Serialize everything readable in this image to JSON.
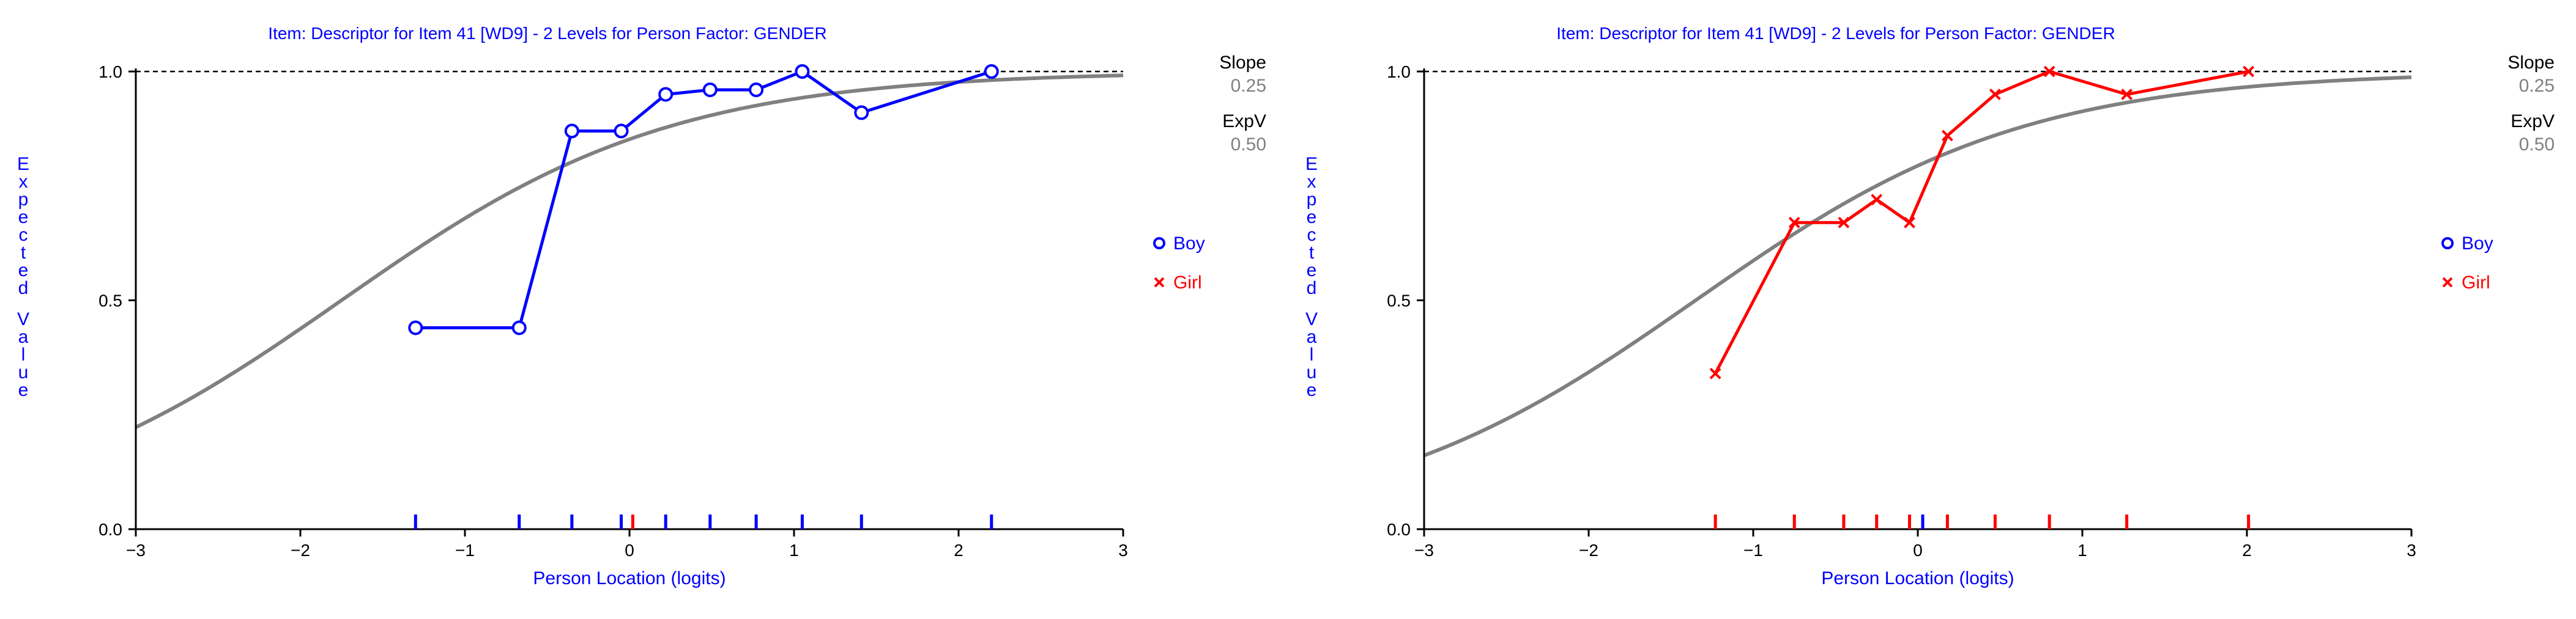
{
  "colors": {
    "boy": "#0000ff",
    "girl": "#ff0000",
    "icc": "#808080",
    "axis": "#000000",
    "label": "#0000ff"
  },
  "chart_data": [
    {
      "type": "line",
      "title": "Item: Descriptor for Item 41 [WD9] - 2 Levels for Person Factor: GENDER",
      "xlabel": "Person Location (logits)",
      "ylabel": "Expected Value",
      "xlim": [
        -3,
        3
      ],
      "ylim": [
        0,
        1
      ],
      "x_ticks": [
        "−3",
        "−2",
        "−1",
        "0",
        "1",
        "2",
        "3"
      ],
      "y_ticks": [
        "0.0",
        "0.5",
        "1.0"
      ],
      "reference_line": 1.0,
      "side_panel": {
        "slope_label": "Slope",
        "slope_value": "0.25",
        "expv_label": "ExpV",
        "expv_value": "0.50"
      },
      "legend": [
        {
          "name": "Boy",
          "marker": "circle",
          "color": "#0000ff"
        },
        {
          "name": "Girl",
          "marker": "x",
          "color": "#ff0000"
        }
      ],
      "icc_curve": {
        "name": "Expected value curve",
        "color": "#808080",
        "location": -1.75,
        "scale": 1.0
      },
      "series": [
        {
          "name": "Boy",
          "marker": "circle",
          "color": "#0000ff",
          "x": [
            -1.3,
            -0.67,
            -0.35,
            -0.05,
            0.22,
            0.49,
            0.77,
            1.05,
            1.41,
            2.2
          ],
          "y": [
            0.44,
            0.44,
            0.87,
            0.87,
            0.95,
            0.96,
            0.96,
            1.0,
            0.91,
            1.0
          ]
        }
      ],
      "rug": [
        {
          "color": "#0000ff",
          "x": [
            -1.3,
            -0.67,
            -0.35,
            -0.05,
            0.22,
            0.49,
            0.77,
            1.05,
            1.41,
            2.2
          ]
        },
        {
          "color": "#ff0000",
          "x": [
            0.02
          ]
        }
      ]
    },
    {
      "type": "line",
      "title": "Item: Descriptor for Item 41 [WD9] - 2 Levels for Person Factor: GENDER",
      "xlabel": "Person Location (logits)",
      "ylabel": "Expected Value",
      "xlim": [
        -3,
        3
      ],
      "ylim": [
        0,
        1
      ],
      "x_ticks": [
        "−3",
        "−2",
        "−1",
        "0",
        "1",
        "2",
        "3"
      ],
      "y_ticks": [
        "0.0",
        "0.5",
        "1.0"
      ],
      "reference_line": 1.0,
      "side_panel": {
        "slope_label": "Slope",
        "slope_value": "0.25",
        "expv_label": "ExpV",
        "expv_value": "0.50"
      },
      "legend": [
        {
          "name": "Boy",
          "marker": "circle",
          "color": "#0000ff"
        },
        {
          "name": "Girl",
          "marker": "x",
          "color": "#ff0000"
        }
      ],
      "icc_curve": {
        "name": "Expected value curve",
        "color": "#808080",
        "location": -1.35,
        "scale": 1.0
      },
      "series": [
        {
          "name": "Girl",
          "marker": "x",
          "color": "#ff0000",
          "x": [
            -1.23,
            -0.75,
            -0.45,
            -0.25,
            -0.05,
            0.18,
            0.47,
            0.8,
            1.27,
            2.01
          ],
          "y": [
            0.34,
            0.67,
            0.67,
            0.72,
            0.67,
            0.86,
            0.95,
            1.0,
            0.95,
            1.0
          ]
        }
      ],
      "rug": [
        {
          "color": "#ff0000",
          "x": [
            -1.23,
            -0.75,
            -0.45,
            -0.25,
            -0.05,
            0.18,
            0.47,
            0.8,
            1.27,
            2.01
          ]
        },
        {
          "color": "#0000ff",
          "x": [
            0.03
          ]
        }
      ]
    }
  ]
}
